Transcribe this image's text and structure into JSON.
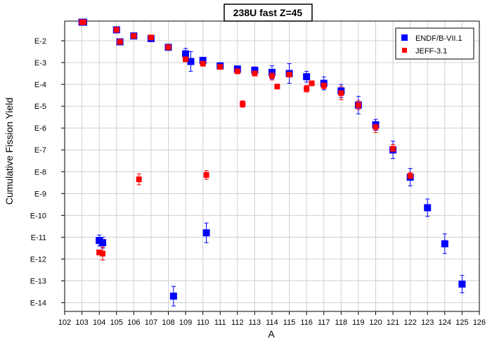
{
  "chart_data": {
    "type": "scatter",
    "title": "238U fast Z=45",
    "xlabel": "A",
    "ylabel": "Cumulative Fission Yield",
    "xlim": [
      102,
      126
    ],
    "x_ticks": [
      "102",
      "103",
      "104",
      "105",
      "106",
      "107",
      "108",
      "109",
      "110",
      "111",
      "112",
      "113",
      "114",
      "115",
      "116",
      "117",
      "118",
      "119",
      "120",
      "121",
      "122",
      "123",
      "124",
      "125",
      "126"
    ],
    "y_scale": "log",
    "ylim_exponent": [
      -14.4,
      -1.1
    ],
    "y_ticks": [
      {
        "exp": -2,
        "label": "E-2"
      },
      {
        "exp": -3,
        "label": "E-3"
      },
      {
        "exp": -4,
        "label": "E-4"
      },
      {
        "exp": -5,
        "label": "E-5"
      },
      {
        "exp": -6,
        "label": "E-6"
      },
      {
        "exp": -7,
        "label": "E-7"
      },
      {
        "exp": -8,
        "label": "E-8"
      },
      {
        "exp": -9,
        "label": "E-9"
      },
      {
        "exp": -10,
        "label": "E-10"
      },
      {
        "exp": -11,
        "label": "E-11"
      },
      {
        "exp": -12,
        "label": "E-12"
      },
      {
        "exp": -13,
        "label": "E-13"
      },
      {
        "exp": -14,
        "label": "E-14"
      }
    ],
    "grid": true,
    "legend_position": "top-right",
    "series": [
      {
        "name": "ENDF/B-VII.1",
        "color": "#0000ff",
        "marker": "square",
        "points": [
          {
            "x": 103.0,
            "exp": -1.15,
            "err": 0
          },
          {
            "x": 103.1,
            "exp": -1.15,
            "err": 0
          },
          {
            "x": 104.0,
            "exp": -11.15,
            "err": 0.25
          },
          {
            "x": 104.2,
            "exp": -11.25,
            "err": 0.25
          },
          {
            "x": 105.0,
            "exp": -1.5,
            "err": 0
          },
          {
            "x": 105.2,
            "exp": -2.05,
            "err": 0
          },
          {
            "x": 106.0,
            "exp": -1.78,
            "err": 0
          },
          {
            "x": 107.0,
            "exp": -1.9,
            "err": 0
          },
          {
            "x": 108.0,
            "exp": -2.3,
            "err": 0
          },
          {
            "x": 108.3,
            "exp": -13.7,
            "err": 0.45
          },
          {
            "x": 109.0,
            "exp": -2.6,
            "err": 0.25
          },
          {
            "x": 109.3,
            "exp": -2.95,
            "err": 0.45
          },
          {
            "x": 110.0,
            "exp": -2.9,
            "err": 0
          },
          {
            "x": 110.2,
            "exp": -10.8,
            "err": 0.45
          },
          {
            "x": 111.0,
            "exp": -3.15,
            "err": 0
          },
          {
            "x": 112.0,
            "exp": -3.3,
            "err": 0.15
          },
          {
            "x": 113.0,
            "exp": -3.35,
            "err": 0.15
          },
          {
            "x": 114.0,
            "exp": -3.45,
            "err": 0.3
          },
          {
            "x": 115.0,
            "exp": -3.5,
            "err": 0.45
          },
          {
            "x": 116.0,
            "exp": -3.65,
            "err": 0.25
          },
          {
            "x": 117.0,
            "exp": -3.95,
            "err": 0.3
          },
          {
            "x": 118.0,
            "exp": -4.3,
            "err": 0.3
          },
          {
            "x": 119.0,
            "exp": -4.95,
            "err": 0.4
          },
          {
            "x": 120.0,
            "exp": -5.85,
            "err": 0.25
          },
          {
            "x": 121.0,
            "exp": -7.0,
            "err": 0.4
          },
          {
            "x": 122.0,
            "exp": -8.25,
            "err": 0.4
          },
          {
            "x": 123.0,
            "exp": -9.65,
            "err": 0.4
          },
          {
            "x": 124.0,
            "exp": -11.3,
            "err": 0.45
          },
          {
            "x": 125.0,
            "exp": -13.15,
            "err": 0.4
          }
        ]
      },
      {
        "name": "JEFF-3.1",
        "color": "#ff0000",
        "marker": "square",
        "points": [
          {
            "x": 103.0,
            "exp": -1.15,
            "err": 0
          },
          {
            "x": 103.1,
            "exp": -1.15,
            "err": 0
          },
          {
            "x": 104.0,
            "exp": -11.7,
            "err": 0
          },
          {
            "x": 104.2,
            "exp": -11.75,
            "err": 0.3
          },
          {
            "x": 105.0,
            "exp": -1.5,
            "err": 0
          },
          {
            "x": 105.2,
            "exp": -2.05,
            "err": 0
          },
          {
            "x": 106.0,
            "exp": -1.78,
            "err": 0
          },
          {
            "x": 106.3,
            "exp": -8.35,
            "err": 0.25
          },
          {
            "x": 107.0,
            "exp": -1.85,
            "err": 0
          },
          {
            "x": 108.0,
            "exp": -2.3,
            "err": 0
          },
          {
            "x": 109.0,
            "exp": -2.85,
            "err": 0
          },
          {
            "x": 110.0,
            "exp": -3.05,
            "err": 0
          },
          {
            "x": 110.2,
            "exp": -8.15,
            "err": 0.2
          },
          {
            "x": 111.0,
            "exp": -3.2,
            "err": 0
          },
          {
            "x": 112.0,
            "exp": -3.4,
            "err": 0
          },
          {
            "x": 112.3,
            "exp": -4.9,
            "err": 0.15
          },
          {
            "x": 113.0,
            "exp": -3.5,
            "err": 0
          },
          {
            "x": 114.0,
            "exp": -3.6,
            "err": 0.2
          },
          {
            "x": 114.3,
            "exp": -4.1,
            "err": 0
          },
          {
            "x": 115.0,
            "exp": -3.55,
            "err": 0
          },
          {
            "x": 116.0,
            "exp": -4.2,
            "err": 0.15
          },
          {
            "x": 116.3,
            "exp": -3.95,
            "err": 0
          },
          {
            "x": 117.0,
            "exp": -4.05,
            "err": 0.15
          },
          {
            "x": 118.0,
            "exp": -4.4,
            "err": 0.3
          },
          {
            "x": 119.0,
            "exp": -4.95,
            "err": 0.2
          },
          {
            "x": 120.0,
            "exp": -5.95,
            "err": 0.25
          },
          {
            "x": 121.0,
            "exp": -6.95,
            "err": 0.2
          },
          {
            "x": 122.0,
            "exp": -8.2,
            "err": 0.15
          }
        ]
      }
    ]
  }
}
